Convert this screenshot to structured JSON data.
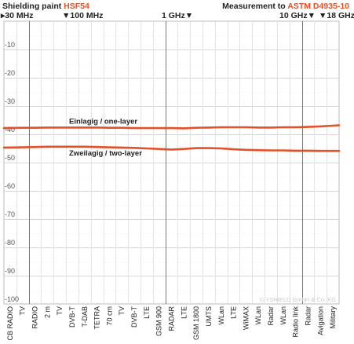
{
  "header": {
    "title_prefix": "Shielding paint ",
    "title_product": "HSF54",
    "measurement_prefix": "Measurement to ",
    "measurement_standard": "ASTM D4935-10",
    "accent_color": "#e2522a"
  },
  "freq_marks": [
    {
      "label": "30 MHz",
      "pos": "left"
    },
    {
      "label": "100 MHz",
      "pos": "left"
    },
    {
      "label": "1 GHz",
      "pos": "right"
    },
    {
      "label": "10 GHz",
      "pos": "right"
    },
    {
      "label": "18 GHz",
      "pos": "left"
    }
  ],
  "watermark": "© YSHIELD GmbH & Co. KG",
  "chart_data": {
    "type": "line",
    "ylim": [
      -100,
      0
    ],
    "yticks": [
      -10,
      -20,
      -30,
      -40,
      -50,
      -60,
      -70,
      -80,
      -90,
      -100
    ],
    "categories": [
      "CB RADIO",
      "TV",
      "RADIO",
      "2 m",
      "TV",
      "DVB-T",
      "T-DAB",
      "TETRA",
      "70 cm",
      "TV",
      "DVB-T",
      "LTE",
      "GSM 900",
      "RADAR",
      "LTE",
      "GSM 1800",
      "UMTS",
      "WLan",
      "LTE",
      "WiMAX",
      "WLan",
      "Radar",
      "WLan",
      "Radio link",
      "Radar",
      "Avigation",
      "Military"
    ],
    "series": [
      {
        "name": "Einlagig / one-layer",
        "color": "#e2522a",
        "values": [
          -37.8,
          -37.7,
          -37.7,
          -37.6,
          -37.6,
          -37.6,
          -37.6,
          -37.6,
          -37.7,
          -37.7,
          -37.8,
          -37.8,
          -37.8,
          -37.8,
          -37.9,
          -37.7,
          -37.6,
          -37.5,
          -37.5,
          -37.5,
          -37.6,
          -37.6,
          -37.5,
          -37.5,
          -37.4,
          -37.2,
          -36.8
        ]
      },
      {
        "name": "Zweilagig / two-layer",
        "color": "#e2522a",
        "values": [
          -44.7,
          -44.6,
          -44.5,
          -44.4,
          -44.4,
          -44.4,
          -44.4,
          -44.5,
          -44.6,
          -44.7,
          -44.8,
          -45.0,
          -45.2,
          -45.4,
          -45.2,
          -44.9,
          -44.9,
          -45.0,
          -45.3,
          -45.5,
          -45.6,
          -45.7,
          -45.7,
          -45.8,
          -45.8,
          -45.9,
          -45.9
        ]
      }
    ]
  }
}
